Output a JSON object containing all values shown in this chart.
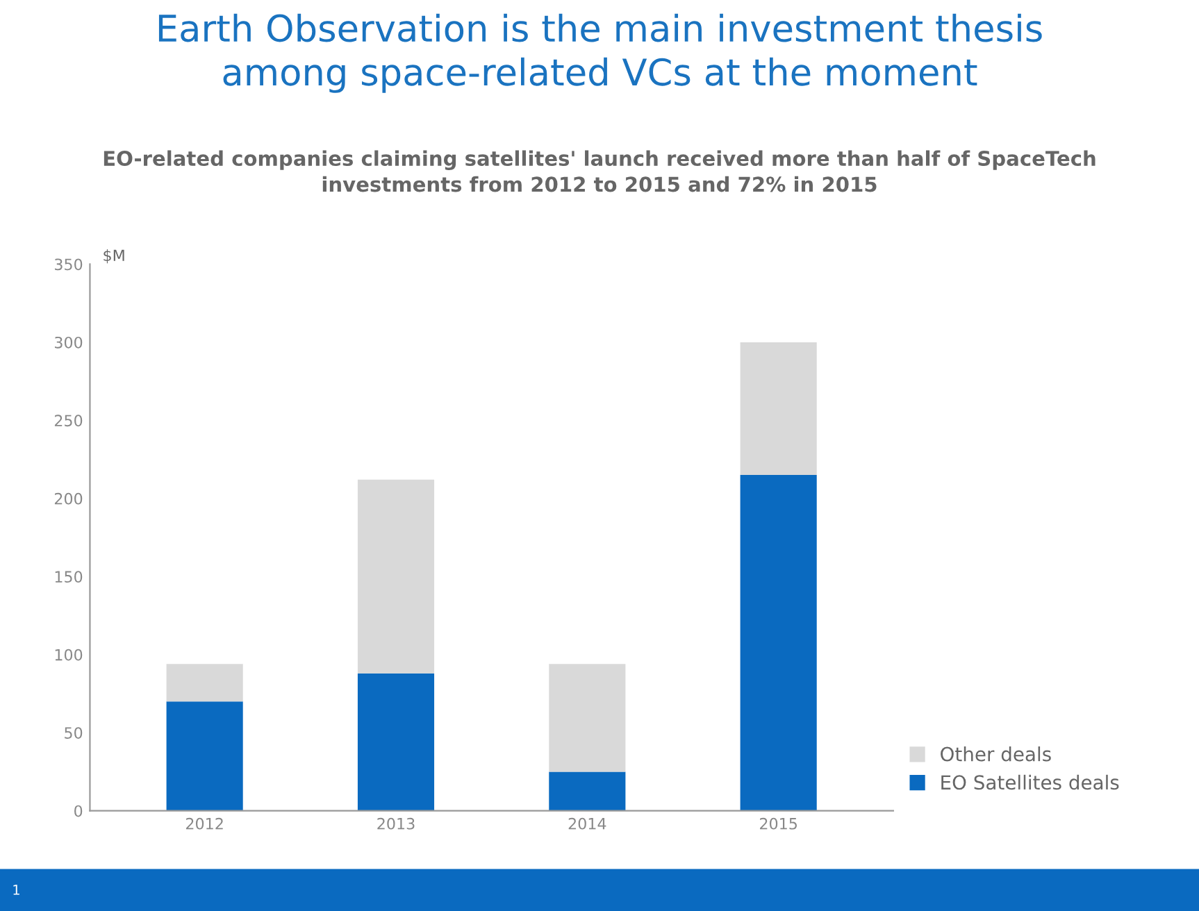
{
  "chart_data": {
    "type": "bar",
    "stacked": true,
    "title": "Earth Observation is the main investment thesis\namong space-related VCs at the moment",
    "subtitle": "EO-related companies claiming satellites' launch received more than half of SpaceTech\ninvestments from 2012 to 2015 and 72% in 2015",
    "ylabel": "$M",
    "categories": [
      "2012",
      "2013",
      "2014",
      "2015"
    ],
    "series": [
      {
        "name": "EO Satellites deals",
        "color": "#0a6ac0",
        "values": [
          70,
          88,
          25,
          215
        ]
      },
      {
        "name": "Other deals",
        "color": "#d9d9d9",
        "values": [
          24,
          124,
          69,
          85
        ]
      }
    ],
    "ylim": [
      0,
      350
    ],
    "yticks": [
      0,
      50,
      100,
      150,
      200,
      250,
      300,
      350
    ],
    "grid": false,
    "legend": "bottom right",
    "annotations": [
      "1"
    ]
  }
}
